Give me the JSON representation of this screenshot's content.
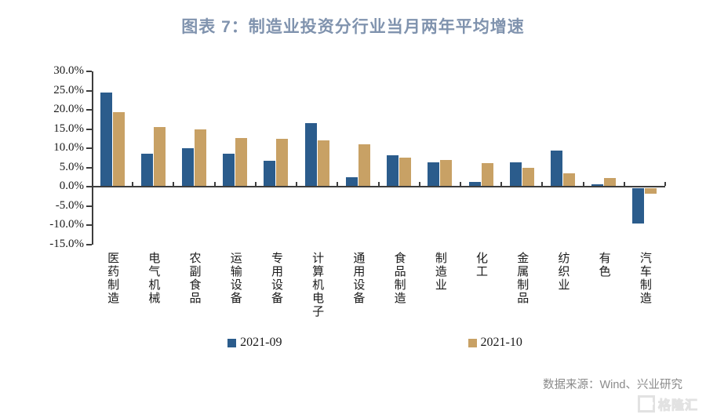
{
  "page": {
    "source": "数据来源：Wind、兴业研究",
    "watermark": "格隆汇"
  },
  "colors": {
    "title": "#8093ae",
    "axis": "#3d3d3d",
    "text": "#1a1a1a",
    "source_text": "#8a8a8a",
    "watermark": "#e2e2e2",
    "series_2021_09": "#2b5c8c",
    "series_2021_10": "#c8a165"
  },
  "chart_data": {
    "type": "bar",
    "title": "图表 7：制造业投资分行业当月两年平均增速",
    "xlabel": "",
    "ylabel": "",
    "ylim": [
      -15,
      30
    ],
    "ytick_step": 5,
    "ytick_labels": [
      "30.0%",
      "25.0%",
      "20.0%",
      "15.0%",
      "10.0%",
      "5.0%",
      "0.0%",
      "-5.0%",
      "-10.0%",
      "-15.0%"
    ],
    "grid": false,
    "legend_position": "bottom",
    "categories": [
      "医药制造",
      "电气机械",
      "农副食品",
      "运输设备",
      "专用设备",
      "计算机电子",
      "通用设备",
      "食品制造",
      "制造业",
      "化工",
      "金属制品",
      "纺织业",
      "有色",
      "汽车制造"
    ],
    "series": [
      {
        "name": "2021-09",
        "color": "#2b5c8c",
        "values": [
          24.5,
          8.6,
          10.1,
          8.6,
          6.8,
          16.5,
          2.4,
          8.2,
          6.4,
          1.3,
          6.3,
          9.4,
          0.6,
          -9.1
        ]
      },
      {
        "name": "2021-10",
        "color": "#c8a165",
        "values": [
          19.4,
          15.5,
          15.0,
          12.7,
          12.5,
          12.1,
          11.1,
          7.6,
          6.9,
          6.1,
          5.0,
          3.4,
          2.2,
          -1.5
        ]
      }
    ]
  }
}
